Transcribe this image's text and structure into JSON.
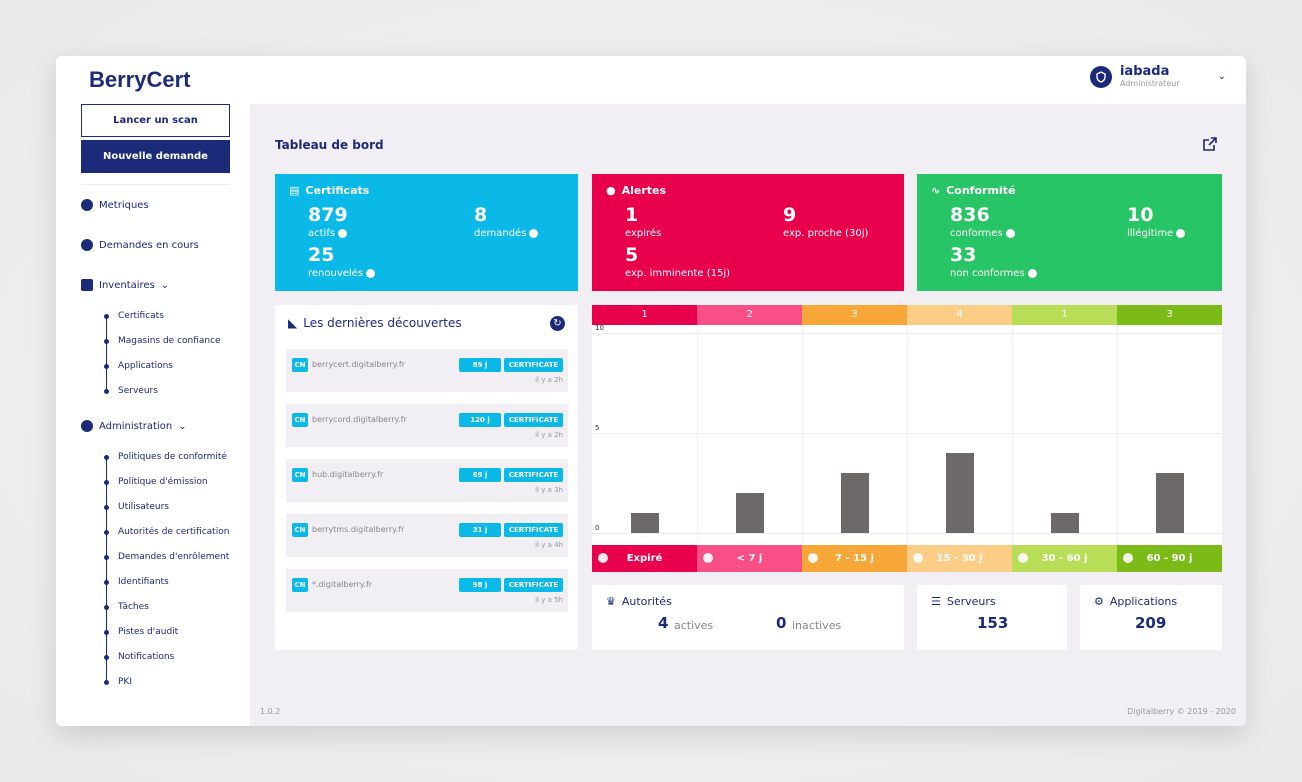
{
  "app": {
    "title": "BerryCert"
  },
  "user": {
    "name": "iabada",
    "role": "Administrateur"
  },
  "sidebar": {
    "scan_label": "Lancer un scan",
    "new_request_label": "Nouvelle demande",
    "metrics_label": "Metriques",
    "pending_label": "Demandes en cours",
    "inventories_label": "Inventaires",
    "inventories": [
      "Certificats",
      "Magasins de confiance",
      "Applications",
      "Serveurs"
    ],
    "admin_label": "Administration",
    "admin_items": [
      "Politiques de conformité",
      "Politique d'émission",
      "Utilisateurs",
      "Autorités de certification",
      "Demandes d'enrôlement",
      "Identifiants",
      "Tâches",
      "Pistes d'audit",
      "Notifications",
      "PKI"
    ]
  },
  "main": {
    "title": "Tableau de bord",
    "cards": {
      "certs": {
        "title": "Certificats",
        "actifs": "879",
        "actifs_label": "actifs",
        "demandes": "8",
        "demandes_label": "demandés",
        "renouveles": "25",
        "renouveles_label": "renouvelés",
        "color": "#0ab9e8"
      },
      "alerts": {
        "title": "Alertes",
        "expires": "1",
        "expires_label": "expirés",
        "proche": "9",
        "proche_label": "exp. proche (30j)",
        "imminente": "5",
        "imminente_label": "exp. imminente (15j)",
        "color": "#e8004c"
      },
      "conf": {
        "title": "Conformité",
        "conformes": "836",
        "conformes_label": "conformes",
        "illegitime": "10",
        "illegitime_label": "illégitime",
        "non": "33",
        "non_label": "non conformes",
        "color": "#27c565"
      }
    },
    "discoveries": {
      "title": "Les dernières découvertes",
      "items": [
        {
          "cn": "CN",
          "host": "berrycert.digitalberry.fr",
          "days": "89 j",
          "type": "CERTIFICATE",
          "ago": "il y a 2h"
        },
        {
          "cn": "CN",
          "host": "berrycord.digitalberry.fr",
          "days": "120 j",
          "type": "CERTIFICATE",
          "ago": "il y a 2h"
        },
        {
          "cn": "CN",
          "host": "hub.digitalberry.fr",
          "days": "69 j",
          "type": "CERTIFICATE",
          "ago": "il y a 3h"
        },
        {
          "cn": "CN",
          "host": "berrytms.digitalberry.fr",
          "days": "31 j",
          "type": "CERTIFICATE",
          "ago": "il y a 4h"
        },
        {
          "cn": "CN",
          "host": "*.digitalberry.fr",
          "days": "98 j",
          "type": "CERTIFICATE",
          "ago": "il y a 5h"
        }
      ]
    },
    "small_cards": {
      "authorities": {
        "title": "Autorités",
        "active": "4",
        "active_label": "actives",
        "inactive": "0",
        "inactive_label": "inactives"
      },
      "servers": {
        "title": "Serveurs",
        "value": "153"
      },
      "applications": {
        "title": "Applications",
        "value": "209"
      }
    },
    "footer": {
      "version": "1.0.2",
      "copyright": "Digitalberry © 2019 - 2020"
    }
  },
  "chart_data": {
    "type": "bar",
    "categories": [
      "Expiré",
      "< 7 j",
      "7 - 15 j",
      "15 - 30 j",
      "30 - 60 j",
      "60 - 90 j"
    ],
    "values": [
      1,
      2,
      3,
      4,
      1,
      3
    ],
    "top_labels": [
      "1",
      "2",
      "3",
      "4",
      "1",
      "3"
    ],
    "colors": [
      "#e8004c",
      "#f74f86",
      "#f7a738",
      "#fbcd86",
      "#b8dd57",
      "#7cbb17"
    ],
    "ylim": [
      0,
      10
    ],
    "yticks": [
      "0",
      "5",
      "10"
    ],
    "grid": true
  }
}
